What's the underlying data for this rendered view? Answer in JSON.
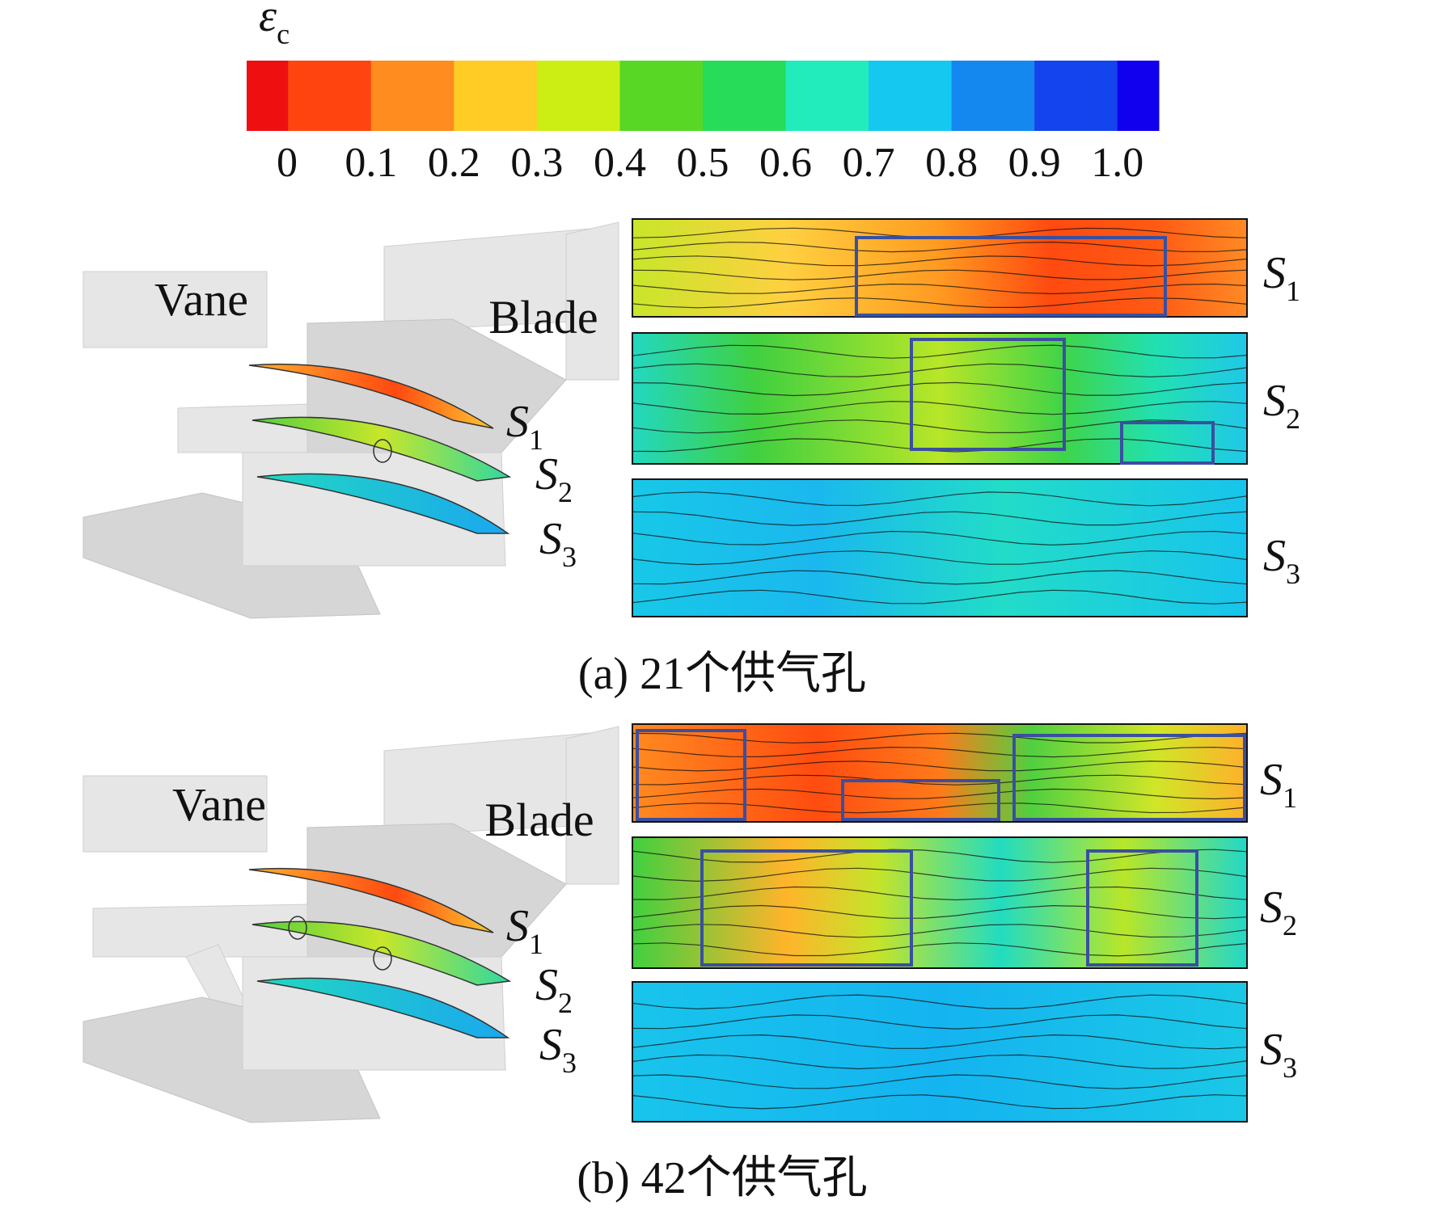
{
  "colorbar": {
    "label": {
      "main": "ε",
      "sub": "c"
    },
    "ticks": [
      "0",
      "0.1",
      "0.2",
      "0.3",
      "0.4",
      "0.5",
      "0.6",
      "0.7",
      "0.8",
      "0.9",
      "1.0"
    ],
    "colors": [
      "#ee1010",
      "#ff4410",
      "#ff8c1e",
      "#ffcc26",
      "#ccee14",
      "#58d824",
      "#26dc58",
      "#22ecbc",
      "#14c8f0",
      "#1488ee",
      "#1444ee",
      "#1000ee"
    ]
  },
  "panels": [
    {
      "caption": "(a) 21个供气孔",
      "vane": "Vane",
      "blade": "Blade",
      "sections": [
        {
          "main": "S",
          "sub": "1"
        },
        {
          "main": "S",
          "sub": "2"
        },
        {
          "main": "S",
          "sub": "3"
        }
      ]
    },
    {
      "caption": "(b) 42个供气孔",
      "vane": "Vane",
      "blade": "Blade",
      "sections": [
        {
          "main": "S",
          "sub": "1"
        },
        {
          "main": "S",
          "sub": "2"
        },
        {
          "main": "S",
          "sub": "3"
        }
      ]
    }
  ]
}
